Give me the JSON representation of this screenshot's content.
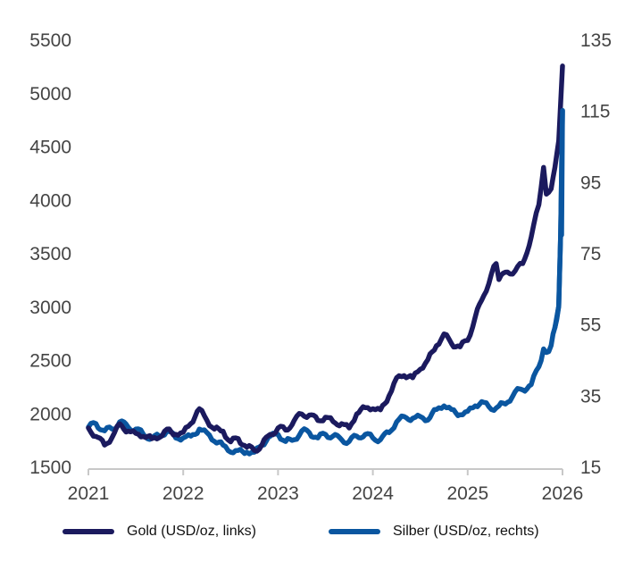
{
  "chart_data": {
    "type": "line",
    "title": "",
    "xlabel": "",
    "ylabel_left": "",
    "ylabel_right": "",
    "xlim": [
      2021,
      2026
    ],
    "x_ticks": [
      "2021",
      "2022",
      "2023",
      "2024",
      "2025",
      "2026"
    ],
    "ylim_left": [
      1500,
      5500
    ],
    "y_ticks_left": [
      "1500",
      "2000",
      "2500",
      "3000",
      "3500",
      "4000",
      "4500",
      "5000",
      "5500"
    ],
    "ylim_right": [
      15,
      135
    ],
    "y_ticks_right": [
      "15",
      "35",
      "55",
      "75",
      "95",
      "115",
      "135"
    ],
    "grid": false,
    "legend_position": "bottom",
    "series": [
      {
        "name": "Gold (USD/oz, links)",
        "axis": "left",
        "color": "#1b1a5e",
        "x": [
          2021.0,
          2021.08,
          2021.17,
          2021.25,
          2021.33,
          2021.42,
          2021.5,
          2021.58,
          2021.67,
          2021.75,
          2021.83,
          2021.92,
          2022.0,
          2022.08,
          2022.17,
          2022.25,
          2022.33,
          2022.42,
          2022.5,
          2022.58,
          2022.67,
          2022.75,
          2022.83,
          2022.92,
          2023.0,
          2023.08,
          2023.17,
          2023.25,
          2023.33,
          2023.42,
          2023.5,
          2023.58,
          2023.67,
          2023.75,
          2023.83,
          2023.92,
          2024.0,
          2024.08,
          2024.17,
          2024.25,
          2024.33,
          2024.42,
          2024.5,
          2024.58,
          2024.67,
          2024.75,
          2024.83,
          2024.92,
          2025.0,
          2025.08,
          2025.17,
          2025.25,
          2025.3,
          2025.33,
          2025.42,
          2025.5,
          2025.58,
          2025.67,
          2025.75,
          2025.8,
          2025.83,
          2025.88,
          2025.92,
          2025.96,
          2026.0
        ],
        "y": [
          1860,
          1780,
          1700,
          1770,
          1900,
          1830,
          1810,
          1780,
          1760,
          1770,
          1850,
          1800,
          1820,
          1900,
          2040,
          1930,
          1850,
          1830,
          1730,
          1760,
          1680,
          1650,
          1700,
          1800,
          1860,
          1840,
          1930,
          1990,
          1980,
          1930,
          1960,
          1920,
          1900,
          1860,
          1990,
          2050,
          2040,
          2030,
          2160,
          2330,
          2350,
          2330,
          2410,
          2500,
          2630,
          2740,
          2650,
          2620,
          2680,
          2900,
          3100,
          3300,
          3400,
          3250,
          3320,
          3330,
          3400,
          3650,
          3950,
          4300,
          4050,
          4100,
          4300,
          4550,
          5250
        ]
      },
      {
        "name": "Silber (USD/oz, rechts)",
        "axis": "right",
        "color": "#0a56a0",
        "x": [
          2021.0,
          2021.08,
          2021.17,
          2021.25,
          2021.33,
          2021.42,
          2021.5,
          2021.58,
          2021.67,
          2021.75,
          2021.83,
          2021.92,
          2022.0,
          2022.08,
          2022.17,
          2022.25,
          2022.33,
          2022.42,
          2022.5,
          2022.58,
          2022.67,
          2022.75,
          2022.83,
          2022.92,
          2023.0,
          2023.08,
          2023.17,
          2023.25,
          2023.33,
          2023.42,
          2023.5,
          2023.58,
          2023.67,
          2023.75,
          2023.83,
          2023.92,
          2024.0,
          2024.08,
          2024.17,
          2024.25,
          2024.33,
          2024.42,
          2024.5,
          2024.58,
          2024.67,
          2024.75,
          2024.83,
          2024.92,
          2025.0,
          2025.08,
          2025.17,
          2025.25,
          2025.33,
          2025.42,
          2025.5,
          2025.58,
          2025.67,
          2025.75,
          2025.8,
          2025.83,
          2025.88,
          2025.92,
          2025.96,
          2025.98,
          2026.0
        ],
        "y": [
          26,
          27,
          25,
          25.5,
          27.5,
          26,
          25.5,
          24,
          23,
          23.5,
          25,
          23,
          23,
          23.5,
          25.5,
          24.5,
          22,
          21,
          19,
          19.5,
          19,
          19,
          21,
          23.5,
          24,
          22,
          22.5,
          25,
          24.5,
          23,
          24,
          23.5,
          22.5,
          22,
          23.5,
          24,
          23,
          22.5,
          24.5,
          27.5,
          29,
          28.5,
          29,
          28,
          31,
          32,
          31,
          29.5,
          30.5,
          32,
          33,
          31,
          32,
          33,
          36,
          36.5,
          38,
          43,
          48,
          47,
          49,
          54,
          60,
          80,
          115
        ]
      }
    ]
  }
}
